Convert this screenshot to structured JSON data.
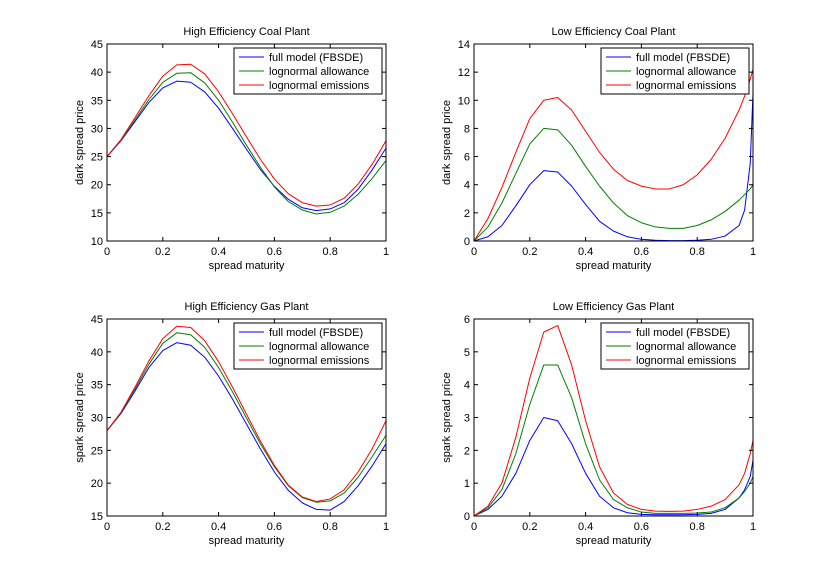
{
  "chart_data": [
    {
      "type": "line",
      "title": "High Efficiency Coal Plant",
      "xlabel": "spread maturity",
      "ylabel": "dark spread price",
      "xlim": [
        0,
        1
      ],
      "ylim": [
        10,
        45
      ],
      "xticks": [
        0,
        0.2,
        0.4,
        0.6,
        0.8,
        1
      ],
      "xtick_labels": [
        "0",
        "0.2",
        "0.4",
        "0.6",
        "0.8",
        "1"
      ],
      "yticks": [
        10,
        15,
        20,
        25,
        30,
        35,
        40,
        45
      ],
      "ytick_labels": [
        "10",
        "15",
        "20",
        "25",
        "30",
        "35",
        "40",
        "45"
      ],
      "legend_position": "top-right",
      "x": [
        0,
        0.05,
        0.1,
        0.15,
        0.2,
        0.25,
        0.3,
        0.35,
        0.4,
        0.45,
        0.5,
        0.55,
        0.6,
        0.65,
        0.7,
        0.75,
        0.8,
        0.85,
        0.9,
        0.95,
        1
      ],
      "series": [
        {
          "name": "full model (FBSDE)",
          "color": "#0000ff",
          "values": [
            25,
            27.8,
            31.2,
            34.6,
            37.2,
            38.4,
            38.2,
            36.5,
            33.6,
            30,
            26.3,
            22.7,
            19.7,
            17.4,
            15.9,
            15.4,
            15.7,
            16.8,
            19.2,
            22.6,
            26.5
          ]
        },
        {
          "name": "lognormal allowance",
          "color": "#008000",
          "values": [
            25,
            27.9,
            31.5,
            35.1,
            38.2,
            39.8,
            39.9,
            38.1,
            35,
            31.1,
            27,
            23.1,
            19.6,
            17,
            15.5,
            14.8,
            15.1,
            16.2,
            18.3,
            21.1,
            24.3
          ]
        },
        {
          "name": "lognormal emissions",
          "color": "#ff0000",
          "values": [
            25,
            28,
            31.9,
            35.8,
            39.3,
            41.3,
            41.4,
            39.7,
            36.5,
            32.6,
            28.5,
            24.5,
            21,
            18.4,
            16.8,
            16.2,
            16.4,
            17.6,
            20.1,
            23.6,
            27.8
          ]
        }
      ]
    },
    {
      "type": "line",
      "title": "Low Efficiency Coal Plant",
      "xlabel": "spread maturity",
      "ylabel": "dark spread price",
      "xlim": [
        0,
        1
      ],
      "ylim": [
        0,
        14
      ],
      "xticks": [
        0,
        0.2,
        0.4,
        0.6,
        0.8,
        1
      ],
      "xtick_labels": [
        "0",
        "0.2",
        "0.4",
        "0.6",
        "0.8",
        "1"
      ],
      "yticks": [
        0,
        2,
        4,
        6,
        8,
        10,
        12,
        14
      ],
      "ytick_labels": [
        "0",
        "2",
        "4",
        "6",
        "8",
        "10",
        "12",
        "14"
      ],
      "legend_position": "top-right",
      "x": [
        0,
        0.05,
        0.1,
        0.15,
        0.2,
        0.25,
        0.3,
        0.35,
        0.4,
        0.45,
        0.5,
        0.55,
        0.6,
        0.65,
        0.7,
        0.75,
        0.8,
        0.85,
        0.9,
        0.95,
        0.97,
        0.99,
        1
      ],
      "series": [
        {
          "name": "full model (FBSDE)",
          "color": "#0000ff",
          "values": [
            0,
            0.3,
            1.1,
            2.5,
            4,
            5,
            4.9,
            3.9,
            2.6,
            1.4,
            0.7,
            0.3,
            0.12,
            0.05,
            0.03,
            0.03,
            0.05,
            0.12,
            0.35,
            1.1,
            2.2,
            5.5,
            10.5
          ]
        },
        {
          "name": "lognormal allowance",
          "color": "#008000",
          "values": [
            0,
            1,
            2.7,
            4.8,
            6.9,
            8,
            7.9,
            6.8,
            5.3,
            3.9,
            2.7,
            1.8,
            1.3,
            1,
            0.9,
            0.9,
            1.1,
            1.5,
            2.1,
            2.9,
            3.3,
            3.7,
            4
          ]
        },
        {
          "name": "lognormal emissions",
          "color": "#ff0000",
          "values": [
            0,
            1.6,
            3.8,
            6.3,
            8.7,
            10,
            10.2,
            9.3,
            7.8,
            6.3,
            5.1,
            4.3,
            3.9,
            3.7,
            3.7,
            4,
            4.7,
            5.8,
            7.3,
            9.3,
            10.3,
            11.5,
            12.2
          ]
        }
      ]
    },
    {
      "type": "line",
      "title": "High Efficiency Gas Plant",
      "xlabel": "spread maturity",
      "ylabel": "spark spread price",
      "xlim": [
        0,
        1
      ],
      "ylim": [
        15,
        45
      ],
      "xticks": [
        0,
        0.2,
        0.4,
        0.6,
        0.8,
        1
      ],
      "xtick_labels": [
        "0",
        "0.2",
        "0.4",
        "0.6",
        "0.8",
        "1"
      ],
      "yticks": [
        15,
        20,
        25,
        30,
        35,
        40,
        45
      ],
      "ytick_labels": [
        "15",
        "20",
        "25",
        "30",
        "35",
        "40",
        "45"
      ],
      "legend_position": "top-right",
      "x": [
        0,
        0.05,
        0.1,
        0.15,
        0.2,
        0.25,
        0.3,
        0.35,
        0.4,
        0.45,
        0.5,
        0.55,
        0.6,
        0.65,
        0.7,
        0.75,
        0.8,
        0.85,
        0.9,
        0.95,
        1
      ],
      "series": [
        {
          "name": "full model (FBSDE)",
          "color": "#0000ff",
          "values": [
            28,
            30.6,
            34,
            37.6,
            40.2,
            41.4,
            41,
            39.2,
            36.3,
            32.8,
            29,
            25.2,
            21.7,
            18.9,
            17,
            16,
            15.9,
            17.2,
            19.6,
            22.6,
            26
          ]
        },
        {
          "name": "lognormal allowance",
          "color": "#008000",
          "values": [
            28,
            30.7,
            34.3,
            38.1,
            41.3,
            42.9,
            42.6,
            40.7,
            37.6,
            33.9,
            29.9,
            26,
            22.5,
            19.6,
            17.8,
            17.1,
            17.3,
            18.5,
            20.9,
            24,
            27.3
          ]
        },
        {
          "name": "lognormal emissions",
          "color": "#ff0000",
          "values": [
            28,
            30.8,
            34.6,
            38.6,
            42,
            43.9,
            43.7,
            41.7,
            38.5,
            34.6,
            30.5,
            26.4,
            22.7,
            19.7,
            17.9,
            17.2,
            17.6,
            19,
            21.7,
            25.2,
            29.5
          ]
        }
      ]
    },
    {
      "type": "line",
      "title": "Low Efficiency Gas Plant",
      "xlabel": "spread maturity",
      "ylabel": "spark spread price",
      "xlim": [
        0,
        1
      ],
      "ylim": [
        0,
        6
      ],
      "xticks": [
        0,
        0.2,
        0.4,
        0.6,
        0.8,
        1
      ],
      "xtick_labels": [
        "0",
        "0.2",
        "0.4",
        "0.6",
        "0.8",
        "1"
      ],
      "yticks": [
        0,
        1,
        2,
        3,
        4,
        5,
        6
      ],
      "ytick_labels": [
        "0",
        "1",
        "2",
        "3",
        "4",
        "5",
        "6"
      ],
      "legend_position": "top-right",
      "x": [
        0,
        0.05,
        0.1,
        0.15,
        0.2,
        0.25,
        0.3,
        0.35,
        0.4,
        0.45,
        0.5,
        0.55,
        0.6,
        0.65,
        0.7,
        0.75,
        0.8,
        0.85,
        0.9,
        0.95,
        0.97,
        0.99,
        1
      ],
      "series": [
        {
          "name": "full model (FBSDE)",
          "color": "#0000ff",
          "values": [
            0,
            0.2,
            0.6,
            1.3,
            2.3,
            3,
            2.9,
            2.2,
            1.3,
            0.6,
            0.25,
            0.1,
            0.05,
            0.04,
            0.04,
            0.04,
            0.05,
            0.08,
            0.2,
            0.55,
            0.8,
            1.2,
            1.7
          ]
        },
        {
          "name": "lognormal allowance",
          "color": "#008000",
          "values": [
            0,
            0.25,
            0.8,
            1.9,
            3.4,
            4.6,
            4.6,
            3.6,
            2.2,
            1.1,
            0.5,
            0.25,
            0.12,
            0.08,
            0.08,
            0.08,
            0.09,
            0.12,
            0.25,
            0.55,
            0.75,
            1,
            1.2
          ]
        },
        {
          "name": "lognormal emissions",
          "color": "#ff0000",
          "values": [
            0,
            0.3,
            1,
            2.4,
            4.2,
            5.6,
            5.8,
            4.6,
            2.9,
            1.5,
            0.7,
            0.35,
            0.2,
            0.15,
            0.14,
            0.15,
            0.2,
            0.3,
            0.5,
            0.95,
            1.3,
            1.9,
            2.3
          ]
        }
      ]
    }
  ]
}
